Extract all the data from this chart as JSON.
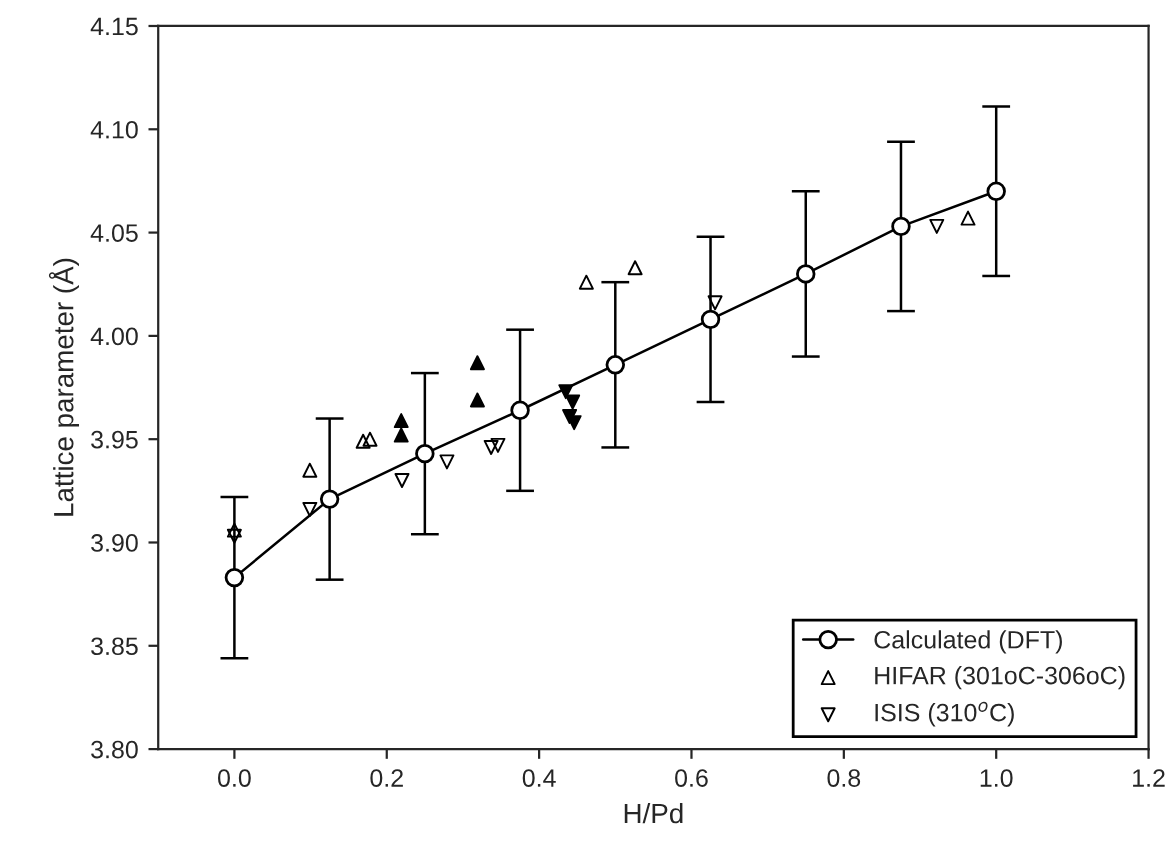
{
  "chart_data": {
    "type": "line",
    "xlabel": "H/Pd",
    "ylabel": "Lattice parameter (Å)",
    "xlim": [
      -0.1,
      1.2
    ],
    "ylim": [
      3.8,
      4.15
    ],
    "xticks": [
      {
        "value": 0.0,
        "label": "0.0"
      },
      {
        "value": 0.2,
        "label": "0.2"
      },
      {
        "value": 0.4,
        "label": "0.4"
      },
      {
        "value": 0.6,
        "label": "0.6"
      },
      {
        "value": 0.8,
        "label": "0.8"
      },
      {
        "value": 1.0,
        "label": "1.0"
      },
      {
        "value": 1.2,
        "label": "1.2"
      }
    ],
    "yticks": [
      {
        "value": 3.8,
        "label": "3.80"
      },
      {
        "value": 3.85,
        "label": "3.85"
      },
      {
        "value": 3.9,
        "label": "3.90"
      },
      {
        "value": 3.95,
        "label": "3.95"
      },
      {
        "value": 4.0,
        "label": "4.00"
      },
      {
        "value": 4.05,
        "label": "4.05"
      },
      {
        "value": 4.1,
        "label": "4.10"
      },
      {
        "value": 4.15,
        "label": "4.15"
      }
    ],
    "grid": false,
    "legend": "bottom right",
    "series": [
      {
        "name": "Calculated (DFT)",
        "marker": "circle",
        "line_style": "solid",
        "color": "#000000",
        "x": [
          0,
          0.125,
          0.25,
          0.375,
          0.5,
          0.625,
          0.75,
          0.875,
          1.0
        ],
        "values": [
          3.883,
          3.921,
          3.943,
          3.964,
          3.986,
          4.008,
          4.03,
          4.053,
          4.07
        ],
        "errors": [
          0.039,
          0.039,
          0.039,
          0.039,
          0.04,
          0.04,
          0.04,
          0.041,
          0.041
        ]
      },
      {
        "name": "HIFAR (301oC-306oC)",
        "type": "scatter",
        "marker": "triangle",
        "color": "#000000",
        "x": [
          0,
          0.099,
          0.169,
          0.178,
          0.462,
          0.526,
          0.963
        ],
        "values": [
          3.906,
          3.935,
          3.949,
          3.95,
          4.026,
          4.033,
          4.057
        ]
      },
      {
        "name": "ISIS (310$^{o}$C)",
        "type": "scatter",
        "marker": "triangle_down",
        "color": "#000000",
        "x": [
          0,
          0.099,
          0.22,
          0.279,
          0.337,
          0.346,
          0.631,
          0.922
        ],
        "values": [
          3.903,
          3.916,
          3.93,
          3.939,
          3.946,
          3.947,
          4.016,
          4.053
        ]
      },
      {
        "type": "scatter",
        "marker": "triangle_filled",
        "color": "#000000",
        "x": [
          0.219,
          0.219,
          0.319,
          0.319
        ],
        "values": [
          3.959,
          3.952,
          3.987,
          3.969
        ]
      },
      {
        "type": "scatter",
        "marker": "triangle_down_filled",
        "color": "#000000",
        "x": [
          0.435,
          0.444,
          0.44,
          0.446
        ],
        "values": [
          3.973,
          3.968,
          3.961,
          3.958
        ]
      }
    ]
  }
}
